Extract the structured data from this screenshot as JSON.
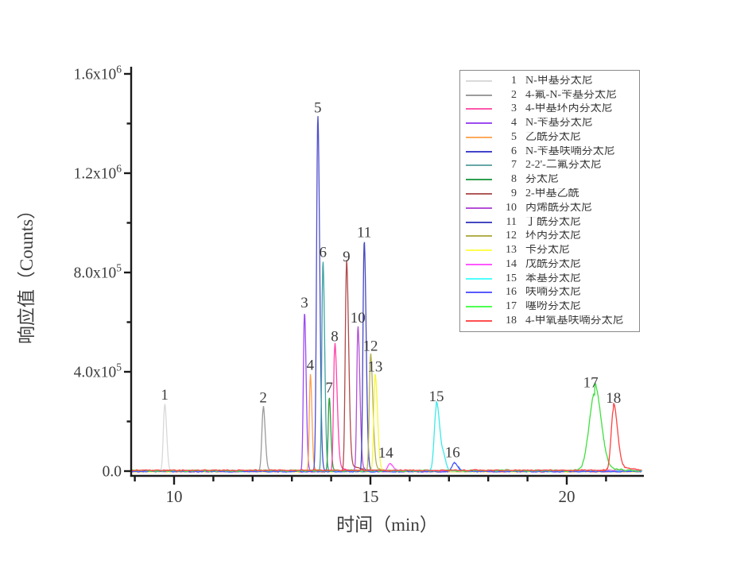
{
  "figure": {
    "background": "#ffffff"
  },
  "axes": {
    "x": {
      "title": "时间（min）",
      "major_ticks": [
        10,
        15,
        20
      ],
      "minor_tick_step": 1,
      "minor_range": [
        9,
        21
      ]
    },
    "y": {
      "title": "响应值（Counts）",
      "major_ticks": [
        {
          "value": 0,
          "base": "0.0",
          "exp": ""
        },
        {
          "value": 400000,
          "base": "4.0x10",
          "exp": "5"
        },
        {
          "value": 800000,
          "base": "8.0x10",
          "exp": "5"
        },
        {
          "value": 1200000,
          "base": "1.2x10",
          "exp": "6"
        },
        {
          "value": 1600000,
          "base": "1.6x10",
          "exp": "6"
        }
      ],
      "minor_ticks": [
        200000,
        600000,
        1000000,
        1400000
      ]
    }
  },
  "chart_data": {
    "type": "line",
    "title": "",
    "xlabel": "时间（min）",
    "ylabel": "响应值（Counts）",
    "xlim": [
      8.9,
      21.95
    ],
    "ylim": [
      0,
      1600000
    ],
    "grid": false,
    "legend_position": "top-right",
    "peaks": [
      {
        "num": "1",
        "name": "N-甲基芬太尼",
        "color": "#d8d8d8",
        "rt_min": 9.76,
        "height_counts": 265000,
        "sl": 0.035,
        "sr": 0.05,
        "tail_amp": 0.04,
        "tail_tau": 0.08,
        "noise": 0.5
      },
      {
        "num": "2",
        "name": "4-氟-N-苄基芬太尼",
        "color": "#9a9a9a",
        "rt_min": 12.27,
        "height_counts": 250000,
        "sl": 0.035,
        "sr": 0.05,
        "tail_amp": 0.05,
        "tail_tau": 0.1,
        "noise": 0.5
      },
      {
        "num": "3",
        "name": "4-甲基环丙芬太尼",
        "color": "#9b4bf0",
        "rt_min": 13.32,
        "height_counts": 635000,
        "sl": 0.028,
        "sr": 0.042,
        "tail_amp": 0.02,
        "tail_tau": 0.1,
        "noise": 0.5
      },
      {
        "num": "4",
        "name": "N-苄基芬太尼",
        "color": "#ff9f4d",
        "rt_min": 13.47,
        "height_counts": 380000,
        "sl": 0.026,
        "sr": 0.04,
        "tail_amp": 0.02,
        "tail_tau": 0.1,
        "noise": 0.5
      },
      {
        "num": "5",
        "name": "乙酰芬太尼",
        "color": "#4d4fcc",
        "rt_min": 13.66,
        "height_counts": 1420000,
        "sl": 0.032,
        "sr": 0.048,
        "tail_amp": 0.01,
        "tail_tau": 0.12,
        "noise": 0.5
      },
      {
        "num": "6",
        "name": "N-苄基呋喃芬太尼",
        "color": "#3fa3a3",
        "rt_min": 13.79,
        "height_counts": 838000,
        "sl": 0.028,
        "sr": 0.045,
        "tail_amp": 0.015,
        "tail_tau": 0.12,
        "noise": 0.5
      },
      {
        "num": "7",
        "name": "2-2'-二氟芬太尼",
        "color": "#2f9e3f",
        "rt_min": 13.95,
        "height_counts": 290000,
        "sl": 0.026,
        "sr": 0.04,
        "tail_amp": 0.03,
        "tail_tau": 0.1,
        "noise": 0.5
      },
      {
        "num": "8",
        "name": "芬太尼",
        "color": "#ff44aa",
        "rt_min": 14.09,
        "height_counts": 500000,
        "sl": 0.03,
        "sr": 0.06,
        "tail_amp": 0.05,
        "tail_tau": 0.3,
        "noise": 0.5
      },
      {
        "num": "9",
        "name": "2-甲基乙酰",
        "color": "#b14a4a",
        "rt_min": 14.39,
        "height_counts": 820000,
        "sl": 0.032,
        "sr": 0.055,
        "tail_amp": 0.04,
        "tail_tau": 0.35,
        "noise": 0.5
      },
      {
        "num": "10",
        "name": "丙烯酰芬太尼",
        "color": "#b350d6",
        "rt_min": 14.68,
        "height_counts": 570000,
        "sl": 0.028,
        "sr": 0.05,
        "tail_amp": 0.03,
        "tail_tau": 0.15,
        "noise": 0.5
      },
      {
        "num": "11",
        "name": "丁酰芬太尼",
        "color": "#4648c0",
        "rt_min": 14.84,
        "height_counts": 918000,
        "sl": 0.03,
        "sr": 0.05,
        "tail_amp": 0.02,
        "tail_tau": 0.15,
        "noise": 0.5
      },
      {
        "num": "12",
        "name": "环丙芬太尼",
        "color": "#b3af4f",
        "rt_min": 15.0,
        "height_counts": 458000,
        "sl": 0.03,
        "sr": 0.06,
        "tail_amp": 0.05,
        "tail_tau": 0.2,
        "noise": 0.5
      },
      {
        "num": "13",
        "name": "卡芬太尼",
        "color": "#f6f63e",
        "rt_min": 15.12,
        "height_counts": 378000,
        "sl": 0.035,
        "sr": 0.06,
        "tail_amp": 0.04,
        "tail_tau": 0.15,
        "noise": 0.5
      },
      {
        "num": "14",
        "name": "戊酰芬太尼",
        "color": "#ff52ff",
        "rt_min": 15.49,
        "height_counts": 27000,
        "sl": 0.05,
        "sr": 0.08,
        "tail_amp": 0.1,
        "tail_tau": 0.2,
        "noise": 0.5,
        "dx": -5
      },
      {
        "num": "15",
        "name": "苯基芬太尼",
        "color": "#3ce9e9",
        "rt_min": 16.68,
        "height_counts": 256000,
        "sl": 0.055,
        "sr": 0.09,
        "tail_amp": 0.1,
        "tail_tau": 0.15,
        "noise": 1.0,
        "shoulder_rt": 16.88,
        "shoulder_h": 38000
      },
      {
        "num": "16",
        "name": "呋喃芬太尼",
        "color": "#4457ff",
        "rt_min": 17.13,
        "height_counts": 33000,
        "sl": 0.055,
        "sr": 0.09,
        "tail_amp": 0.1,
        "tail_tau": 0.25,
        "noise": 0.8,
        "dx": -2
      },
      {
        "num": "17",
        "name": "噻吩芬太尼",
        "color": "#3fe03f",
        "rt_min": 20.71,
        "height_counts": 310000,
        "sl": 0.14,
        "sr": 0.16,
        "tail_amp": 0.15,
        "tail_tau": 0.25,
        "noise": 1.5,
        "dx": -5
      },
      {
        "num": "18",
        "name": "4-甲氧基呋喃芬太尼",
        "color": "#ff4242",
        "rt_min": 21.19,
        "height_counts": 247000,
        "sl": 0.06,
        "sr": 0.1,
        "tail_amp": 0.1,
        "tail_tau": 0.3,
        "noise": 1.0
      }
    ]
  },
  "legend": {
    "entries": [
      {
        "num": "1",
        "label": "N-甲基芬太尼",
        "color": "#d9d9d9"
      },
      {
        "num": "2",
        "label": "4-氟-N-苄基芬太尼",
        "color": "#9c9c9c"
      },
      {
        "num": "3",
        "label": "4-甲基环丙芬太尼",
        "color": "#ff57ad"
      },
      {
        "num": "4",
        "label": "N-苄基芬太尼",
        "color": "#9b4bf0"
      },
      {
        "num": "5",
        "label": "乙酰芬太尼",
        "color": "#ffaa5e"
      },
      {
        "num": "6",
        "label": "N-苄基呋喃芬太尼",
        "color": "#4444cc"
      },
      {
        "num": "7",
        "label": "2-2'-二氟芬太尼",
        "color": "#69a8a8"
      },
      {
        "num": "8",
        "label": "芬太尼",
        "color": "#2f9e4f"
      },
      {
        "num": "9",
        "label": "2-甲基乙酰",
        "color": "#b15a5a"
      },
      {
        "num": "10",
        "label": "丙烯酰芬太尼",
        "color": "#b350d6"
      },
      {
        "num": "11",
        "label": "丁酰芬太尼",
        "color": "#4648c0"
      },
      {
        "num": "12",
        "label": "环丙芬太尼",
        "color": "#b3af4f"
      },
      {
        "num": "13",
        "label": "卡芬太尼",
        "color": "#ffff4f"
      },
      {
        "num": "14",
        "label": "戊酰芬太尼",
        "color": "#ff57ff"
      },
      {
        "num": "15",
        "label": "苯基芬太尼",
        "color": "#4fffff"
      },
      {
        "num": "16",
        "label": "呋喃芬太尼",
        "color": "#5a5aff"
      },
      {
        "num": "17",
        "label": "噻吩芬太尼",
        "color": "#4fff4f"
      },
      {
        "num": "18",
        "label": "4-甲氧基呋喃芬太尼",
        "color": "#ff4f4f"
      }
    ]
  }
}
